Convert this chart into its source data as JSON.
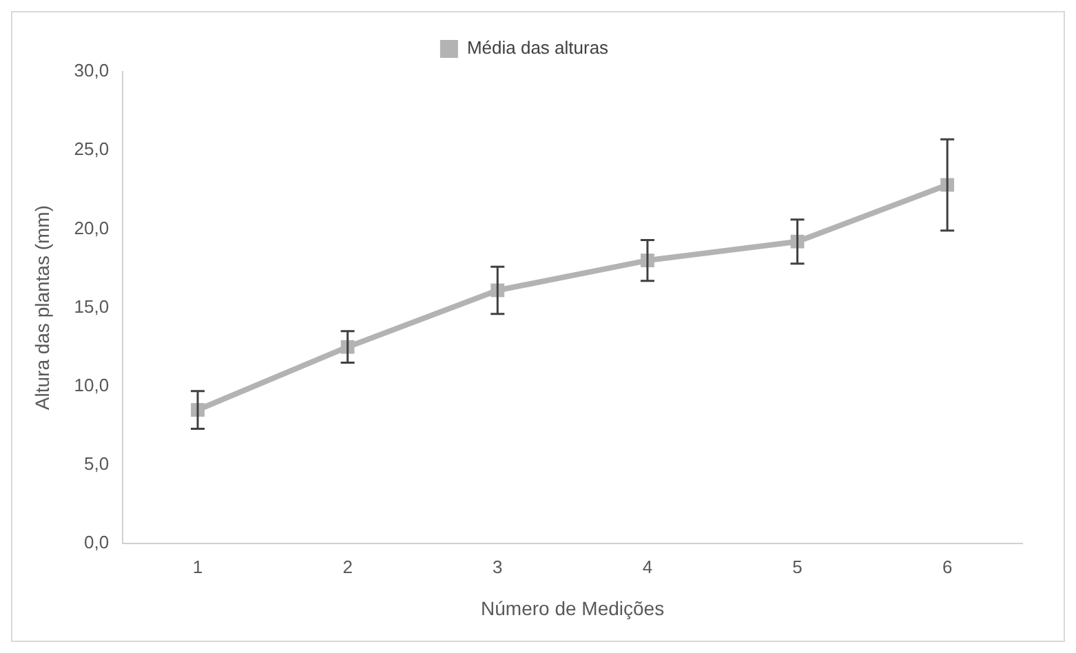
{
  "chart_data": {
    "type": "line",
    "xlabel": "Número de Medições",
    "ylabel": "Altura das plantas (mm)",
    "categories": [
      "1",
      "2",
      "3",
      "4",
      "5",
      "6"
    ],
    "series": [
      {
        "name": "Média das alturas",
        "color": "#b3b3b3",
        "values": [
          8.5,
          12.5,
          16.1,
          18.0,
          19.2,
          22.8
        ],
        "errors": [
          1.2,
          1.0,
          1.5,
          1.3,
          1.4,
          2.9
        ]
      }
    ],
    "ylim": [
      0,
      30
    ],
    "yticks": [
      {
        "value": 0,
        "label": "0,0"
      },
      {
        "value": 5,
        "label": "5,0"
      },
      {
        "value": 10,
        "label": "10,0"
      },
      {
        "value": 15,
        "label": "15,0"
      },
      {
        "value": 20,
        "label": "20,0"
      },
      {
        "value": 25,
        "label": "25,0"
      },
      {
        "value": 30,
        "label": "30,0"
      }
    ],
    "grid": false,
    "legend": "top",
    "marker": "square",
    "line_style": "solid"
  }
}
